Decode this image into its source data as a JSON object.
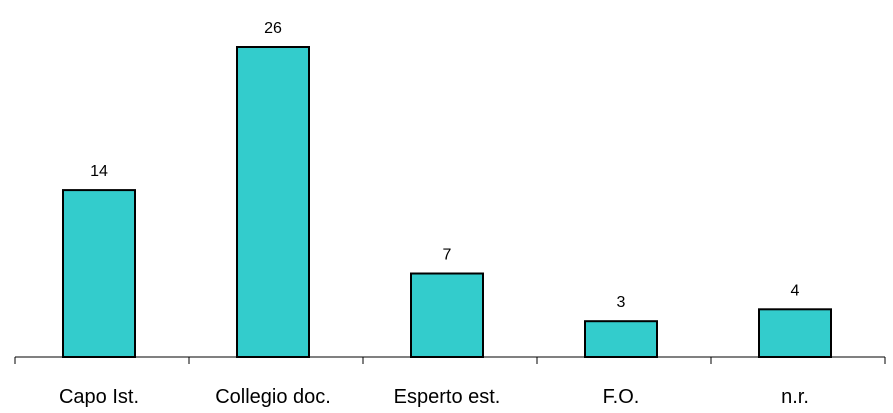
{
  "chart_data": {
    "type": "bar",
    "categories": [
      "Capo Ist.",
      "Collegio doc.",
      "Esperto est.",
      "F.O.",
      "n.r."
    ],
    "values": [
      14,
      26,
      7,
      3,
      4
    ],
    "data_labels": [
      "14",
      "26",
      "7",
      "3",
      "4"
    ],
    "title": "",
    "xlabel": "",
    "ylabel": "",
    "ylim": [
      0,
      26
    ],
    "grid": false,
    "legend": "none",
    "colors": {
      "bar_fill": "#33CCCC",
      "bar_stroke": "#000000",
      "axis": "#000000",
      "text": "#000000"
    }
  }
}
